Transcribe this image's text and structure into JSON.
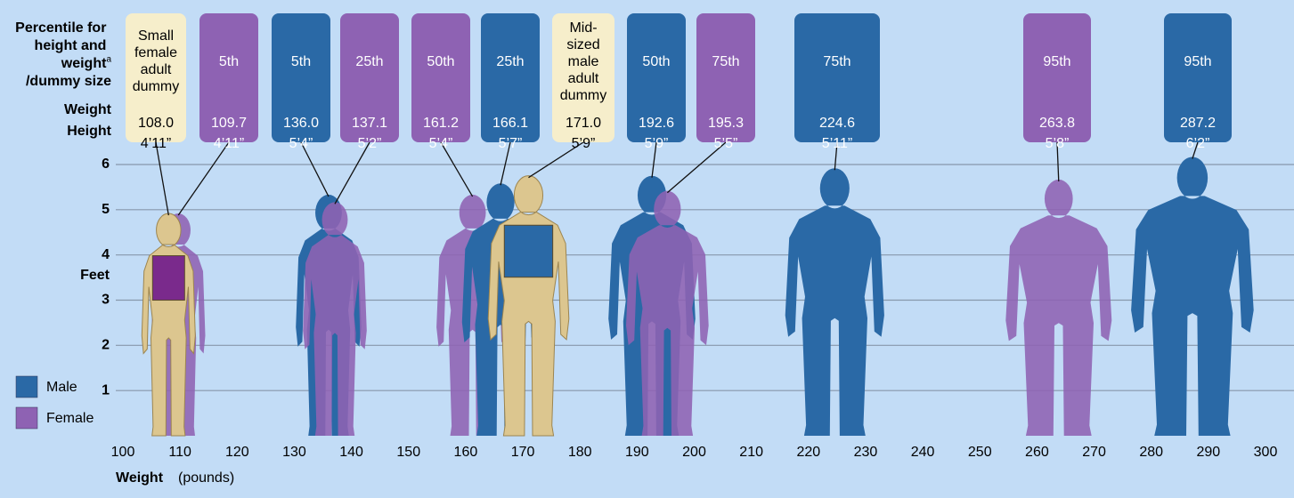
{
  "chart_data": {
    "type": "pictogram",
    "percentile_label": "Percentile for height and weight",
    "footnote_mark": "a",
    "percentile_label_end": "/dummy size",
    "weight_row_label": "Weight",
    "height_row_label": "Height",
    "ylabel": "Feet",
    "xlabel": "Weight",
    "xlabel_unit": "(pounds)",
    "xlim": [
      100,
      300
    ],
    "xticks": [
      100,
      110,
      120,
      130,
      140,
      150,
      160,
      170,
      180,
      190,
      200,
      210,
      220,
      230,
      240,
      250,
      260,
      270,
      280,
      290,
      300
    ],
    "ylim": [
      0,
      6
    ],
    "yticks": [
      1,
      2,
      3,
      4,
      5,
      6
    ],
    "grid": true,
    "legend": "bottom-left",
    "series": [
      {
        "name": "Male",
        "color": "#2a69a6",
        "names": [
          "5th",
          "25th",
          "50th",
          "75th",
          "95th"
        ],
        "x": [
          136.0,
          166.1,
          192.6,
          224.6,
          287.2
        ],
        "x_labels": [
          "136.0",
          "166.1",
          "192.6",
          "224.6",
          "287.2"
        ],
        "values": [
          5.333,
          5.583,
          5.75,
          5.917,
          6.167
        ],
        "value_labels": [
          "5’4”",
          "5’7”",
          "5’9”",
          "5’11”",
          "6’2”"
        ]
      },
      {
        "name": "Female",
        "color": "#8e62b3",
        "names": [
          "5th",
          "25th",
          "50th",
          "75th",
          "95th"
        ],
        "x": [
          109.7,
          137.1,
          161.2,
          195.3,
          263.8
        ],
        "x_labels": [
          "109.7",
          "137.1",
          "161.2",
          "195.3",
          "263.8"
        ],
        "values": [
          4.917,
          5.167,
          5.333,
          5.417,
          5.667
        ],
        "value_labels": [
          "4’11”",
          "5’2”",
          "5’4”",
          "5’5”",
          "5’8”"
        ]
      }
    ],
    "dummies": {
      "color": "#dcc68f",
      "box_color": "#f6eecb",
      "chest_colors": [
        "#7a2a8c",
        "#2a69a6"
      ],
      "names": [
        "Small female adult dummy",
        "Mid-sized male adult dummy"
      ],
      "x": [
        108.0,
        171.0
      ],
      "x_labels": [
        "108.0",
        "171.0"
      ],
      "values": [
        4.917,
        5.75
      ],
      "value_labels": [
        "4’11”",
        "5’9”"
      ]
    }
  }
}
